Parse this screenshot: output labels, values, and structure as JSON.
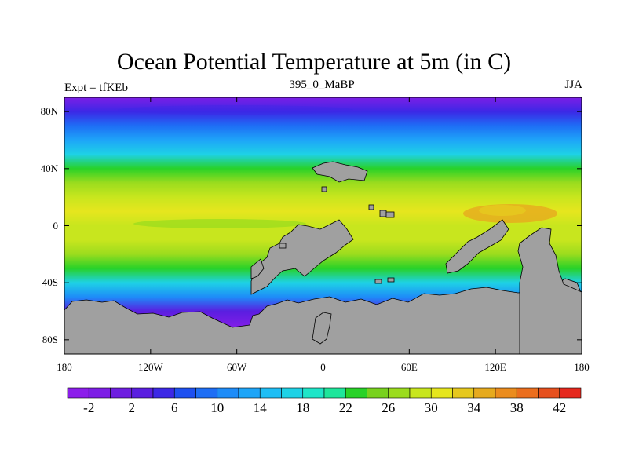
{
  "title": "Ocean Potential Temperature at 5m (in C)",
  "subtitle_left": "Expt = tfKEb",
  "subtitle_center": "395_0_MaBP",
  "subtitle_right": "JJA",
  "map": {
    "projection": "cylindrical-equidistant",
    "lon_range": [
      -180,
      180
    ],
    "lat_range": [
      -90,
      90
    ],
    "land_color": "#a0a0a0",
    "coastline_color": "#000000"
  },
  "y_ticks": [
    {
      "lat": 80,
      "label": "80N"
    },
    {
      "lat": 40,
      "label": "40N"
    },
    {
      "lat": 0,
      "label": "0"
    },
    {
      "lat": -40,
      "label": "40S"
    },
    {
      "lat": -80,
      "label": "80S"
    }
  ],
  "x_ticks": [
    {
      "lon": -180,
      "label": "180"
    },
    {
      "lon": -120,
      "label": "120W"
    },
    {
      "lon": -60,
      "label": "60W"
    },
    {
      "lon": 0,
      "label": "0"
    },
    {
      "lon": 60,
      "label": "60E"
    },
    {
      "lon": 120,
      "label": "120E"
    },
    {
      "lon": 180,
      "label": "180"
    }
  ],
  "colorbar": {
    "colors": [
      "#8c1eeb",
      "#7d1ee6",
      "#6e1ee0",
      "#5a1ee0",
      "#3c28e6",
      "#1e50f0",
      "#1e6ef5",
      "#1e8cf8",
      "#1ea5f8",
      "#1ebef5",
      "#1ed2e6",
      "#1ee6c8",
      "#1ee69b",
      "#28d228",
      "#78d21e",
      "#9bdc1e",
      "#c8e61e",
      "#e6e61e",
      "#e6c81e",
      "#e6aa1e",
      "#eb8c1e",
      "#eb6e1e",
      "#e6501e",
      "#e6281e"
    ],
    "labels": [
      "-2",
      "2",
      "6",
      "10",
      "14",
      "18",
      "22",
      "26",
      "30",
      "34",
      "38",
      "42"
    ]
  },
  "field": {
    "zonal_profile": [
      [
        90,
        -2
      ],
      [
        80,
        5
      ],
      [
        70,
        9
      ],
      [
        60,
        12
      ],
      [
        50,
        17
      ],
      [
        40,
        22
      ],
      [
        30,
        26
      ],
      [
        20,
        29
      ],
      [
        10,
        30
      ],
      [
        0,
        29
      ],
      [
        -10,
        28
      ],
      [
        -20,
        26
      ],
      [
        -30,
        22
      ],
      [
        -40,
        16
      ],
      [
        -50,
        10
      ],
      [
        -60,
        3
      ],
      [
        -70,
        -1
      ],
      [
        -90,
        -2
      ]
    ]
  }
}
